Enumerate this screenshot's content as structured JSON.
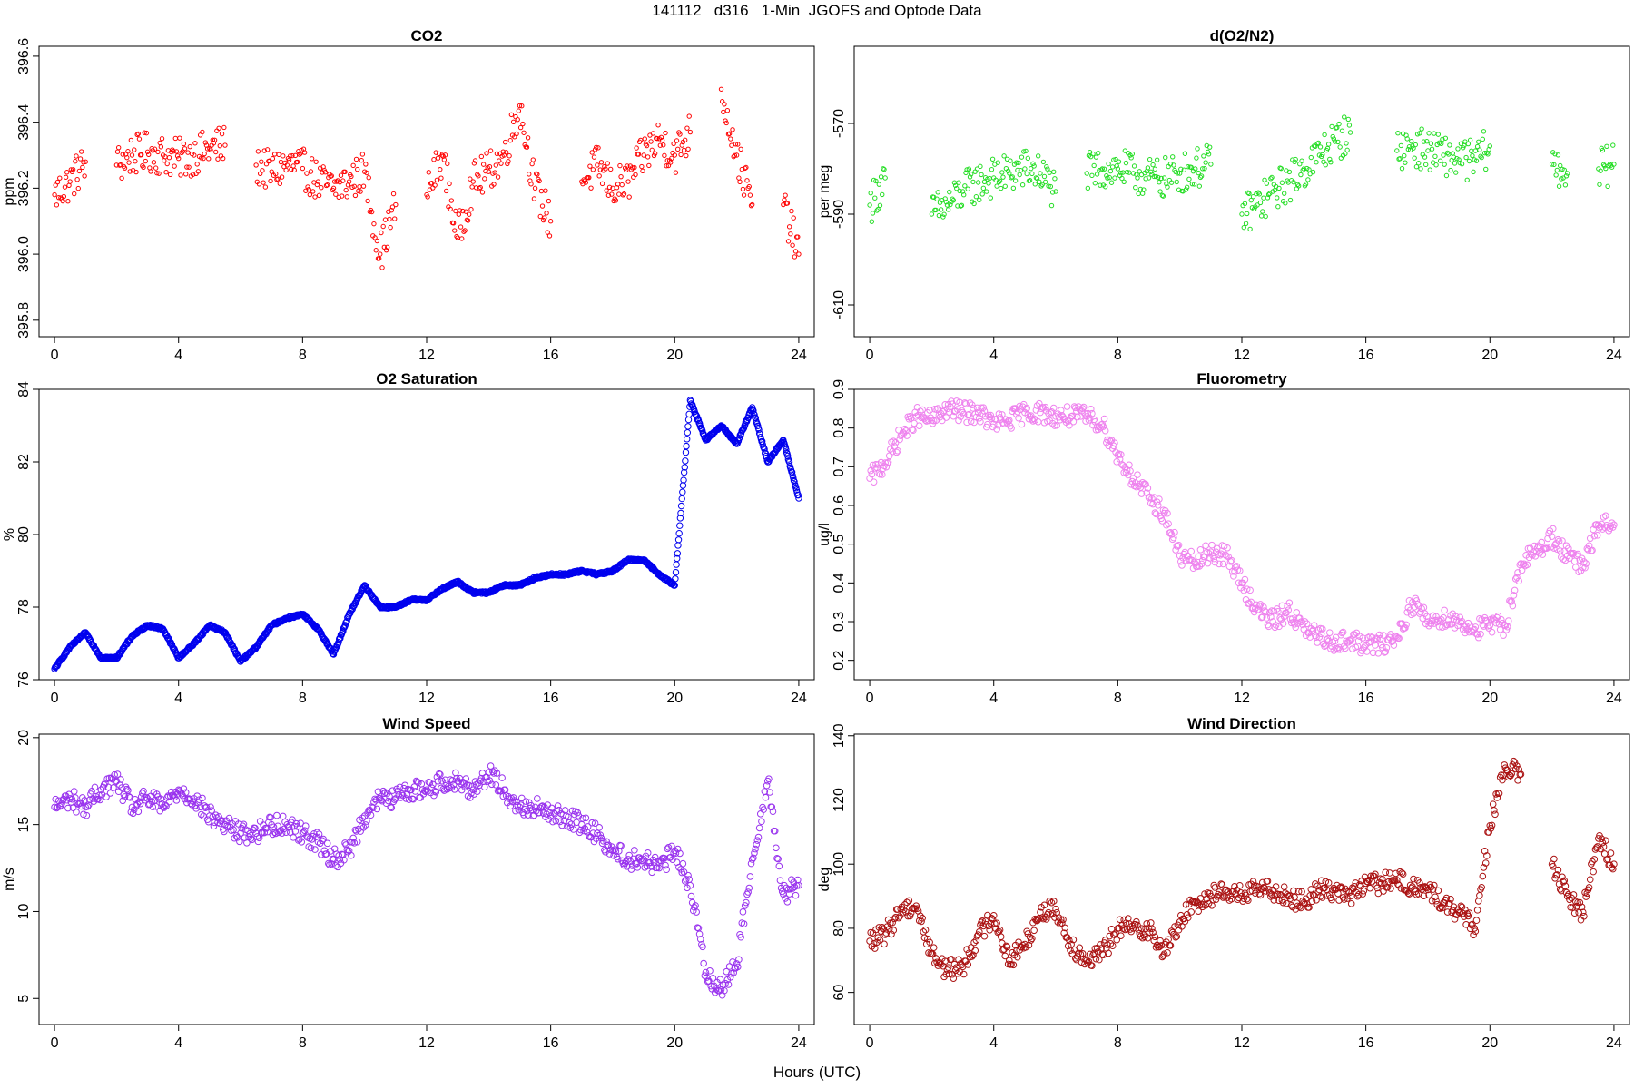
{
  "figure": {
    "title": "141112   d316   1-Min  JGOFS and Optode Data",
    "xlabel": "Hours (UTC)"
  },
  "chart_data": [
    {
      "type": "scatter",
      "title": "CO2",
      "ylabel": "ppm",
      "color": "#ff0000",
      "marker": "open-circle-small",
      "grid": false,
      "xlim": [
        -0.5,
        24.5
      ],
      "ylim": [
        395.75,
        396.63
      ],
      "xticks": [
        0,
        4,
        8,
        12,
        16,
        20,
        24
      ],
      "yticks": [
        395.8,
        396.0,
        396.2,
        396.4,
        396.6
      ],
      "ytick_labels": [
        "395.8",
        "396.0",
        "396.2",
        "396.4",
        "396.6"
      ],
      "series": [
        {
          "x": [
            0,
            0.5,
            1,
            1.5,
            2,
            2.5,
            3,
            3.5,
            4,
            4.5,
            5,
            5.5,
            6,
            6.5,
            7,
            7.5,
            8,
            8.5,
            9,
            9.5,
            10,
            10.5,
            11,
            11.5,
            12,
            12.5,
            13,
            13.5,
            14,
            14.5,
            15,
            15.5,
            16,
            16.5,
            17,
            17.5,
            18,
            18.5,
            19,
            19.5,
            20,
            20.5,
            21,
            21.5,
            22,
            22.5,
            23,
            23.5,
            24
          ],
          "y": [
            396.18,
            396.22,
            396.28,
            null,
            396.27,
            396.3,
            396.31,
            396.3,
            396.29,
            396.3,
            396.32,
            396.33,
            null,
            396.27,
            396.25,
            396.27,
            396.26,
            396.22,
            396.2,
            396.22,
            396.25,
            396.0,
            396.15,
            null,
            396.18,
            396.3,
            396.05,
            396.22,
            396.25,
            396.3,
            396.45,
            396.2,
            396.1,
            null,
            396.22,
            396.27,
            396.2,
            396.22,
            396.3,
            396.35,
            396.3,
            396.37,
            null,
            396.5,
            396.3,
            396.15,
            null,
            396.15,
            396.0
          ]
        }
      ]
    },
    {
      "type": "scatter",
      "title": "d(O2/N2)",
      "ylabel": "per meg",
      "color": "#22dd22",
      "marker": "open-circle-small",
      "grid": false,
      "xlim": [
        -0.5,
        24.5
      ],
      "ylim": [
        -617,
        -553
      ],
      "xticks": [
        0,
        4,
        8,
        12,
        16,
        20,
        24
      ],
      "yticks": [
        -610,
        -590,
        -570
      ],
      "ytick_labels": [
        "-610",
        "-590",
        "-570"
      ],
      "series": [
        {
          "x": [
            0,
            0.5,
            1,
            1.5,
            2,
            2.5,
            3,
            3.5,
            4,
            4.5,
            5,
            5.5,
            6,
            6.5,
            7,
            7.5,
            8,
            8.5,
            9,
            9.5,
            10,
            10.5,
            11,
            11.5,
            12,
            12.5,
            13,
            13.5,
            14,
            14.5,
            15,
            15.5,
            16,
            16.5,
            17,
            17.5,
            18,
            18.5,
            19,
            19.5,
            20,
            20.5,
            21,
            21.5,
            22,
            22.5,
            23,
            23.5,
            24
          ],
          "y": [
            -588,
            -582,
            null,
            null,
            -590,
            -588,
            -585,
            -583,
            -582,
            -581,
            -580,
            -581,
            -585,
            null,
            -581,
            -580,
            -580,
            -581,
            -582,
            -582,
            -581,
            -580,
            -579,
            null,
            -590,
            -588,
            -585,
            -583,
            -580,
            -577,
            -574,
            -572,
            null,
            null,
            -576,
            -575,
            -576,
            -577,
            -578,
            -578,
            -575,
            null,
            null,
            null,
            -579,
            -581,
            null,
            -580,
            -579
          ]
        }
      ]
    },
    {
      "type": "scatter",
      "title": "O2 Saturation",
      "ylabel": "%",
      "color": "#0000ee",
      "marker": "open-circle-dense",
      "grid": false,
      "xlim": [
        -0.5,
        24.5
      ],
      "ylim": [
        76,
        84
      ],
      "xticks": [
        0,
        4,
        8,
        12,
        16,
        20,
        24
      ],
      "yticks": [
        76,
        78,
        80,
        82,
        84
      ],
      "ytick_labels": [
        "76",
        "78",
        "80",
        "82",
        "84"
      ],
      "series": [
        {
          "x": [
            0,
            0.5,
            1,
            1.5,
            2,
            2.5,
            3,
            3.5,
            4,
            4.5,
            5,
            5.5,
            6,
            6.5,
            7,
            7.5,
            8,
            8.5,
            9,
            9.5,
            10,
            10.5,
            11,
            11.5,
            12,
            12.5,
            13,
            13.5,
            14,
            14.5,
            15,
            15.5,
            16,
            16.5,
            17,
            17.5,
            18,
            18.5,
            19,
            19.5,
            20,
            20.5,
            21,
            21.5,
            22,
            22.5,
            23,
            23.5,
            24
          ],
          "y": [
            76.3,
            76.9,
            77.3,
            76.6,
            76.6,
            77.2,
            77.5,
            77.4,
            76.6,
            77.0,
            77.5,
            77.3,
            76.5,
            76.9,
            77.5,
            77.7,
            77.8,
            77.4,
            76.7,
            77.8,
            78.6,
            78.0,
            78.0,
            78.2,
            78.2,
            78.5,
            78.7,
            78.4,
            78.4,
            78.6,
            78.6,
            78.8,
            78.9,
            78.9,
            79.0,
            78.9,
            79.0,
            79.3,
            79.3,
            78.9,
            78.6,
            83.7,
            82.6,
            83.0,
            82.5,
            83.5,
            82.0,
            82.6,
            81.0
          ]
        }
      ]
    },
    {
      "type": "scatter",
      "title": "Fluorometry",
      "ylabel": "ug/l",
      "color": "#ee82ee",
      "marker": "open-circle",
      "grid": false,
      "xlim": [
        -0.5,
        24.5
      ],
      "ylim": [
        0.15,
        0.9
      ],
      "xticks": [
        0,
        4,
        8,
        12,
        16,
        20,
        24
      ],
      "yticks": [
        0.2,
        0.3,
        0.4,
        0.5,
        0.6,
        0.7,
        0.8,
        0.9
      ],
      "ytick_labels": [
        "0.2",
        "0.3",
        "0.4",
        "0.5",
        "0.6",
        "0.7",
        "0.8",
        "0.9"
      ],
      "series": [
        {
          "x": [
            0,
            0.5,
            1,
            1.5,
            2,
            2.5,
            3,
            3.5,
            4,
            4.5,
            5,
            5.5,
            6,
            6.5,
            7,
            7.5,
            8,
            8.5,
            9,
            9.5,
            10,
            10.5,
            11,
            11.5,
            12,
            12.5,
            13,
            13.5,
            14,
            14.5,
            15,
            15.5,
            16,
            16.5,
            17,
            17.5,
            18,
            18.5,
            19,
            19.5,
            20,
            20.5,
            21,
            21.5,
            22,
            22.5,
            23,
            23.5,
            24
          ],
          "y": [
            0.67,
            0.71,
            0.78,
            0.83,
            0.82,
            0.85,
            0.84,
            0.84,
            0.81,
            0.82,
            0.84,
            0.84,
            0.83,
            0.83,
            0.83,
            0.81,
            0.73,
            0.67,
            0.62,
            0.58,
            0.47,
            0.45,
            0.48,
            0.47,
            0.4,
            0.33,
            0.3,
            0.33,
            0.28,
            0.26,
            0.25,
            0.25,
            0.24,
            0.24,
            0.26,
            0.35,
            0.3,
            0.31,
            0.3,
            0.28,
            0.29,
            0.29,
            0.45,
            0.48,
            0.52,
            0.47,
            0.44,
            0.55,
            0.55
          ]
        }
      ]
    },
    {
      "type": "scatter",
      "title": "Wind Speed",
      "ylabel": "m/s",
      "color": "#9933ee",
      "marker": "open-circle",
      "grid": false,
      "xlim": [
        -0.5,
        24.5
      ],
      "ylim": [
        3.5,
        20.2
      ],
      "xticks": [
        0,
        4,
        8,
        12,
        16,
        20,
        24
      ],
      "yticks": [
        5,
        10,
        15,
        20
      ],
      "ytick_labels": [
        "5",
        "10",
        "15",
        "20"
      ],
      "series": [
        {
          "x": [
            0,
            0.5,
            1,
            1.5,
            2,
            2.5,
            3,
            3.5,
            4,
            4.5,
            5,
            5.5,
            6,
            6.5,
            7,
            7.5,
            8,
            8.5,
            9,
            9.5,
            10,
            10.5,
            11,
            11.5,
            12,
            12.5,
            13,
            13.5,
            14,
            14.5,
            15,
            15.5,
            16,
            16.5,
            17,
            17.5,
            18,
            18.5,
            19,
            19.5,
            20,
            20.5,
            21,
            21.5,
            22,
            22.5,
            23,
            23.5,
            24
          ],
          "y": [
            16.0,
            16.5,
            16.0,
            17.0,
            17.5,
            16.0,
            16.5,
            16.0,
            17.0,
            16.5,
            15.5,
            15.0,
            14.5,
            14.5,
            15.0,
            15.0,
            14.5,
            14.0,
            13.0,
            13.5,
            15.5,
            16.5,
            16.5,
            17.0,
            17.0,
            17.5,
            17.5,
            17.0,
            18.0,
            17.0,
            16.0,
            16.0,
            15.5,
            15.5,
            15.0,
            14.5,
            13.5,
            13.0,
            13.0,
            12.5,
            13.5,
            11.5,
            6.5,
            5.5,
            7.0,
            13.0,
            17.5,
            11.0,
            11.5
          ]
        }
      ]
    },
    {
      "type": "scatter",
      "title": "Wind Direction",
      "ylabel": "deg",
      "color": "#aa1111",
      "marker": "open-circle",
      "grid": false,
      "xlim": [
        -0.5,
        24.5
      ],
      "ylim": [
        50,
        140.5
      ],
      "xticks": [
        0,
        4,
        8,
        12,
        16,
        20,
        24
      ],
      "yticks": [
        60,
        80,
        100,
        120,
        140
      ],
      "ytick_labels": [
        "60",
        "80",
        "100",
        "120",
        "140"
      ],
      "series": [
        {
          "x": [
            0,
            0.5,
            1,
            1.5,
            2,
            2.5,
            3,
            3.5,
            4,
            4.5,
            5,
            5.5,
            6,
            6.5,
            7,
            7.5,
            8,
            8.5,
            9,
            9.5,
            10,
            10.5,
            11,
            11.5,
            12,
            12.5,
            13,
            13.5,
            14,
            14.5,
            15,
            15.5,
            16,
            16.5,
            17,
            17.5,
            18,
            18.5,
            19,
            19.5,
            20,
            20.5,
            21,
            21.5,
            22,
            22.5,
            23,
            23.5,
            24
          ],
          "y": [
            76,
            78,
            86,
            87,
            72,
            67,
            68,
            78,
            84,
            70,
            75,
            85,
            86,
            75,
            70,
            72,
            80,
            80,
            80,
            72,
            82,
            88,
            90,
            92,
            90,
            92,
            92,
            90,
            88,
            92,
            92,
            90,
            94,
            94,
            95,
            93,
            92,
            88,
            85,
            80,
            112,
            130,
            128,
            null,
            100,
            90,
            85,
            108,
            100
          ]
        }
      ]
    }
  ]
}
